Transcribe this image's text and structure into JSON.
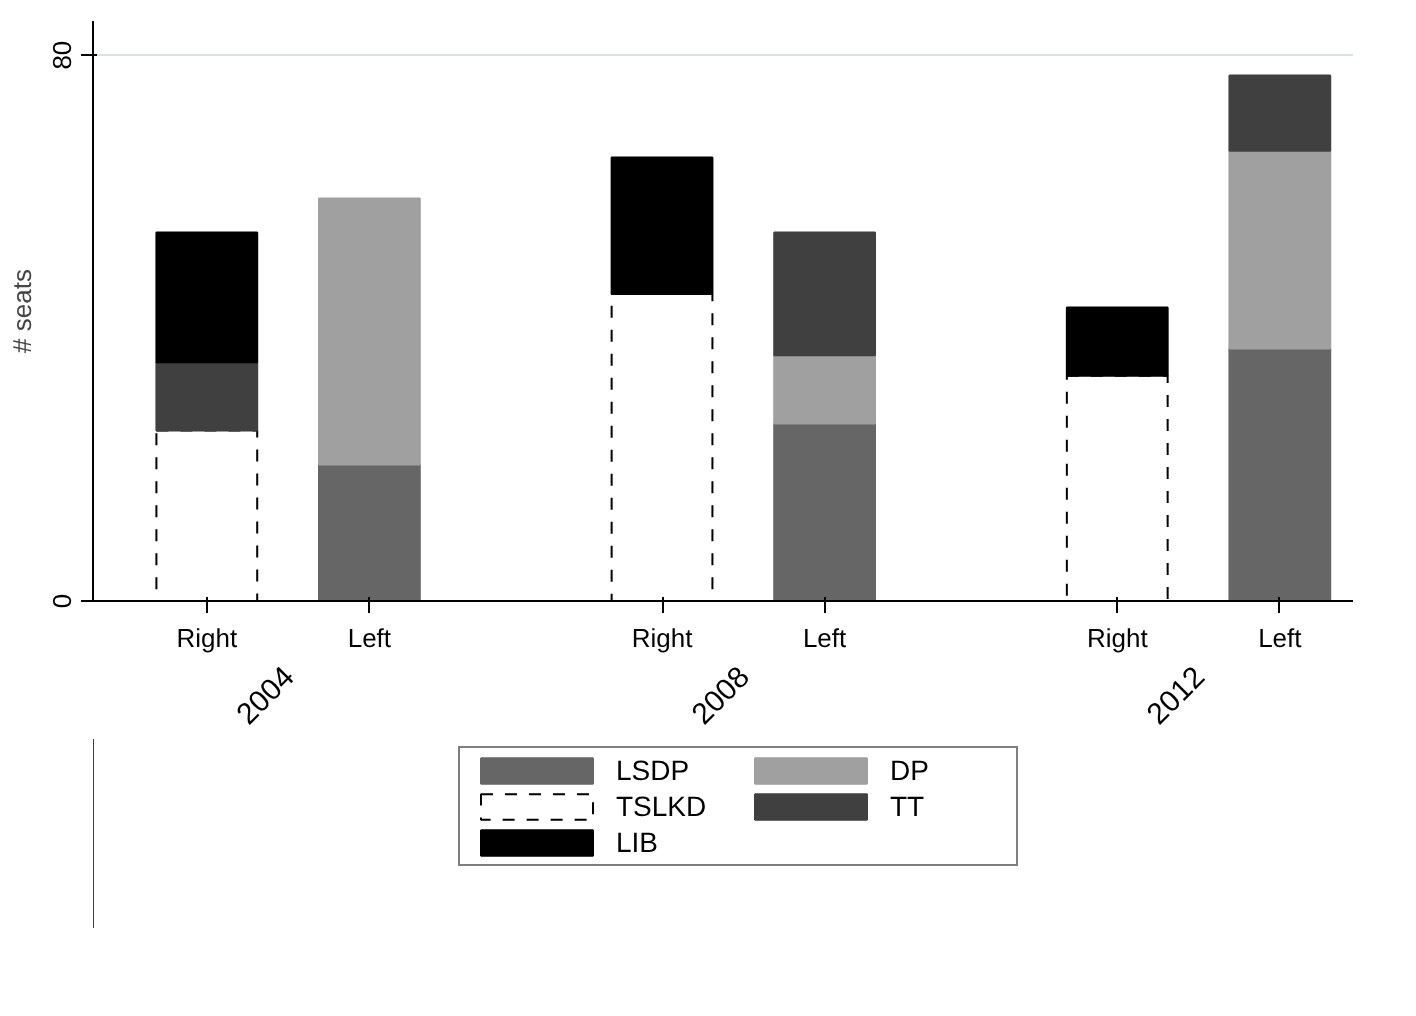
{
  "chart_data": {
    "type": "bar",
    "stacked": true,
    "ylabel": "# seats",
    "categories": [
      "Right",
      "Left",
      "Right",
      "Left",
      "Right",
      "Left"
    ],
    "annotations": [
      "2004",
      "2008",
      "2012"
    ],
    "series": [
      {
        "name": "LSDP",
        "color": "#666666",
        "values": [
          null,
          20,
          null,
          26,
          null,
          37
        ]
      },
      {
        "name": "DP",
        "color": "#a0a0a0",
        "values": [
          null,
          39,
          null,
          10,
          null,
          29
        ]
      },
      {
        "name": "TSLKD",
        "color": "#ffffff",
        "line_style": "dashed",
        "values": [
          25,
          null,
          45,
          null,
          33,
          null
        ]
      },
      {
        "name": "TT",
        "color": "#404040",
        "values": [
          10,
          null,
          null,
          18,
          null,
          11
        ]
      },
      {
        "name": "LIB",
        "color": "#000000",
        "values": [
          19,
          null,
          20,
          null,
          10,
          null
        ]
      }
    ],
    "ylim": [
      0,
      85
    ],
    "yticks": [
      0,
      80
    ],
    "grid": "y",
    "legend": "bottom"
  }
}
